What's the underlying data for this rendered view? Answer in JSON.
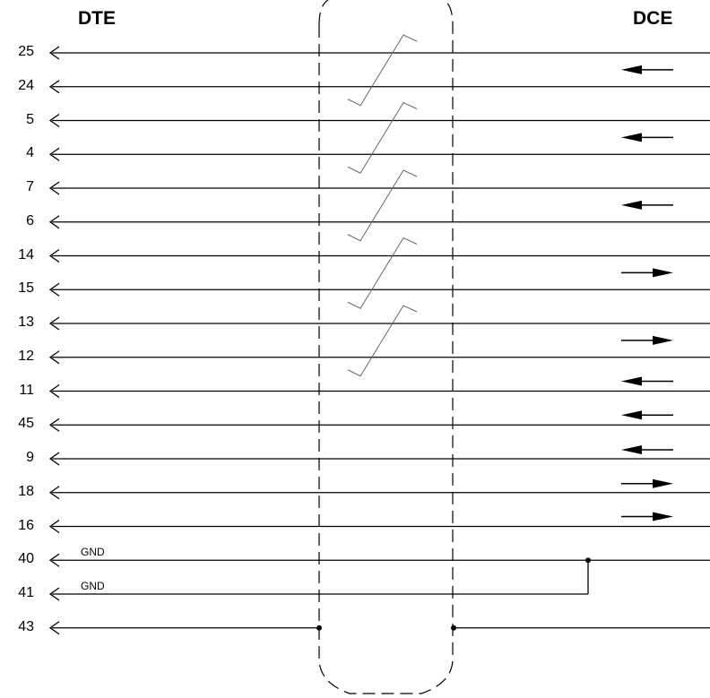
{
  "header": {
    "dte": "DTE",
    "dce": "DCE"
  },
  "pins": [
    {
      "label": "25",
      "arrow": "left"
    },
    {
      "label": "24",
      "arrow": null
    },
    {
      "label": "5",
      "arrow": "left"
    },
    {
      "label": "4",
      "arrow": null
    },
    {
      "label": "7",
      "arrow": "left"
    },
    {
      "label": "6",
      "arrow": null
    },
    {
      "label": "14",
      "arrow": "right"
    },
    {
      "label": "15",
      "arrow": null
    },
    {
      "label": "13",
      "arrow": "right"
    },
    {
      "label": "12",
      "arrow": null
    },
    {
      "label": "11",
      "arrow": "left"
    },
    {
      "label": "45",
      "arrow": "left"
    },
    {
      "label": "9",
      "arrow": "left"
    },
    {
      "label": "18",
      "arrow": "right"
    },
    {
      "label": "16",
      "arrow": "right"
    },
    {
      "label": "40",
      "arrow": null
    },
    {
      "label": "41",
      "arrow": null
    },
    {
      "label": "43",
      "arrow": null
    }
  ],
  "ground": {
    "label_40": "GND",
    "label_41": "GND"
  },
  "twisted_pairs": [
    [
      "25",
      "24"
    ],
    [
      "5",
      "4"
    ],
    [
      "7",
      "6"
    ],
    [
      "14",
      "15"
    ],
    [
      "13",
      "12"
    ]
  ],
  "colors": {
    "line": "#000000",
    "twist": "#666666",
    "shield": "#000000"
  }
}
